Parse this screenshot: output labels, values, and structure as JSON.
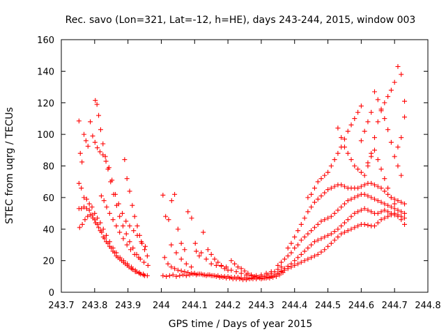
{
  "chart_data": {
    "type": "scatter",
    "title": "Rec. savo (Lon=321, Lat=-12, h=HE), days 243-244, 2015, window 003",
    "xlabel": "GPS time / Days of year 2015",
    "ylabel": "STEC from uqrg / TECUs",
    "xlim": [
      243.7,
      244.8
    ],
    "ylim": [
      0,
      160
    ],
    "xticks": [
      243.7,
      243.8,
      243.9,
      244.0,
      244.1,
      244.2,
      244.3,
      244.4,
      244.5,
      244.6,
      244.7,
      244.8
    ],
    "xtick_labels": [
      "243.7",
      "243.8",
      "243.9",
      "244",
      "244.1",
      "244.2",
      "244.3",
      "244.4",
      "244.5",
      "244.6",
      "244.7",
      "244.8"
    ],
    "yticks": [
      0,
      20,
      40,
      60,
      80,
      100,
      120,
      140,
      160
    ],
    "ytick_labels": [
      "0",
      "20",
      "40",
      "60",
      "80",
      "100",
      "120",
      "140",
      "160"
    ],
    "grid": false,
    "legend": "none",
    "marker": "plus",
    "color": "#ff0000",
    "series": [
      {
        "x": [
          243.753,
          243.757,
          243.762,
          243.768,
          243.774,
          243.78,
          243.787,
          243.794,
          243.801,
          243.808,
          243.816,
          243.825,
          243.834,
          243.843,
          243.852,
          243.862,
          243.872,
          243.883,
          243.894,
          243.905,
          243.917,
          243.928,
          243.94,
          243.952
        ],
        "y": [
          108.5,
          88.0,
          82.5,
          100.0,
          96.0,
          92.5,
          108.0,
          99.0,
          95.0,
          91.5,
          89.0,
          87.0,
          83.0,
          79.0,
          71.0,
          62.0,
          56.0,
          50.0,
          45.0,
          42.0,
          39.0,
          36.0,
          32.0,
          29.0
        ]
      },
      {
        "x": [
          243.753,
          243.76,
          243.768,
          243.776,
          243.784,
          243.792,
          243.8,
          243.808,
          243.817,
          243.826,
          243.835,
          243.845,
          243.855,
          243.865,
          243.876,
          243.887,
          243.898,
          243.91,
          243.922,
          243.934,
          243.946,
          243.958
        ],
        "y": [
          69.0,
          66.0,
          60.0,
          59.0,
          56.0,
          54.0,
          50.0,
          47.0,
          44.0,
          40.0,
          36.0,
          32.0,
          28.0,
          25.0,
          22.0,
          20.0,
          18.0,
          16.0,
          14.0,
          12.5,
          11.5,
          10.5
        ]
      },
      {
        "x": [
          243.753,
          243.76,
          243.768,
          243.776,
          243.784,
          243.792,
          243.8,
          243.808,
          243.817,
          243.826,
          243.835,
          243.845,
          243.855,
          243.865,
          243.876,
          243.887,
          243.898,
          243.91,
          243.922,
          243.934,
          243.946
        ],
        "y": [
          53.0,
          53.0,
          54.0,
          53.0,
          52.0,
          49.0,
          46.0,
          43.0,
          39.0,
          35.0,
          32.0,
          29.0,
          26.0,
          23.0,
          21.0,
          19.0,
          17.0,
          15.0,
          13.0,
          12.0,
          11.0
        ]
      },
      {
        "x": [
          243.755,
          243.763,
          243.771,
          243.779,
          243.787,
          243.795,
          243.803,
          243.812,
          243.821,
          243.83,
          243.84,
          243.85,
          243.86,
          243.87,
          243.881,
          243.892,
          243.903,
          243.914,
          243.926,
          243.938,
          243.95
        ],
        "y": [
          41.0,
          43.0,
          46.0,
          48.0,
          49.0,
          47.0,
          44.0,
          41.0,
          38.0,
          34.0,
          31.0,
          28.0,
          25.0,
          22.0,
          20.0,
          18.0,
          16.0,
          14.5,
          13.0,
          11.5,
          10.5
        ]
      },
      {
        "x": [
          243.802,
          243.807,
          243.812,
          243.818,
          243.825,
          243.832,
          243.84,
          243.848,
          243.857,
          243.866,
          243.875,
          243.885,
          243.895,
          243.905,
          243.915,
          243.926,
          243.937,
          243.948,
          243.96
        ],
        "y": [
          121.5,
          119.0,
          112.0,
          103.0,
          94.0,
          86.0,
          78.0,
          70.0,
          62.0,
          55.0,
          48.0,
          42.0,
          37.0,
          32.0,
          28.0,
          24.0,
          21.0,
          19.0,
          17.0
        ]
      },
      {
        "x": [
          243.82,
          243.828,
          243.836,
          243.845,
          243.855,
          243.865,
          243.875,
          243.886,
          243.897,
          243.908,
          243.92,
          243.932
        ],
        "y": [
          61.0,
          58.0,
          54.0,
          50.0,
          46.0,
          42.0,
          38.0,
          34.0,
          30.0,
          27.0,
          24.0,
          22.0
        ],
        "_note": null
      },
      {
        "x": [
          243.89,
          243.897,
          243.905,
          243.913,
          243.92,
          243.928,
          243.935,
          243.942,
          243.95,
          243.958
        ],
        "y": [
          84.0,
          72.0,
          64.0,
          55.0,
          48.0,
          42.0,
          36.0,
          31.0,
          27.0,
          23.0
        ]
      },
      {
        "x": [
          244.005,
          244.013,
          244.022,
          244.031,
          244.04,
          244.05,
          244.06,
          244.07,
          244.08,
          244.091,
          244.102,
          244.114,
          244.126
        ],
        "y": [
          61.5,
          48.0,
          46.0,
          58.0,
          62.0,
          40.0,
          31.0,
          27.0,
          51.0,
          47.0,
          31.0,
          23.0,
          38.0
        ]
      },
      {
        "x": [
          244.005,
          244.015,
          244.025,
          244.035,
          244.045,
          244.055,
          244.065,
          244.075,
          244.085,
          244.095,
          244.105,
          244.115,
          244.125,
          244.135,
          244.145,
          244.155,
          244.165,
          244.175,
          244.185,
          244.195,
          244.205,
          244.215,
          244.225,
          244.235,
          244.245,
          244.255,
          244.265,
          244.275,
          244.285,
          244.295,
          244.305,
          244.315,
          244.325,
          244.335,
          244.345,
          244.355,
          244.365
        ],
        "y": [
          10.5,
          10.0,
          10.5,
          11.0,
          10.0,
          10.5,
          11.0,
          10.5,
          11.0,
          11.5,
          11.0,
          11.5,
          11.0,
          10.5,
          11.0,
          10.5,
          10.0,
          9.5,
          9.5,
          9.0,
          9.0,
          8.5,
          8.5,
          8.5,
          8.0,
          8.0,
          8.5,
          8.5,
          8.5,
          9.0,
          9.0,
          9.0,
          9.0,
          9.5,
          10.0,
          11.0,
          12.5
        ]
      },
      {
        "x": [
          244.01,
          244.02,
          244.03,
          244.04,
          244.05,
          244.06,
          244.07,
          244.08,
          244.09,
          244.1,
          244.11,
          244.12,
          244.13,
          244.14,
          244.15,
          244.16,
          244.17,
          244.18,
          244.19,
          244.2,
          244.21,
          244.22,
          244.23,
          244.24,
          244.25,
          244.26,
          244.27,
          244.28,
          244.29,
          244.3,
          244.31,
          244.32,
          244.33,
          244.34,
          244.35,
          244.36
        ],
        "y": [
          22.0,
          18.0,
          16.0,
          15.0,
          14.0,
          13.5,
          13.0,
          12.5,
          12.0,
          12.0,
          11.5,
          11.5,
          11.0,
          11.0,
          10.5,
          10.5,
          10.5,
          10.0,
          10.0,
          10.0,
          9.5,
          9.5,
          9.5,
          9.0,
          9.0,
          9.0,
          9.0,
          9.5,
          9.5,
          10.0,
          10.0,
          11.0,
          12.0,
          13.0,
          14.5,
          16.0
        ]
      },
      {
        "x": [
          244.03,
          244.045,
          244.06,
          244.075,
          244.09,
          244.105,
          244.12,
          244.135,
          244.15,
          244.165,
          244.18,
          244.195,
          244.21,
          244.225,
          244.24,
          244.255,
          244.27,
          244.285,
          244.3,
          244.315,
          244.33
        ],
        "y": [
          30.0,
          25.0,
          21.0,
          18.0,
          16.0,
          26.0,
          25.0,
          21.0,
          18.0,
          17.0,
          16.5,
          16.0,
          14.0,
          13.0,
          12.0,
          11.0,
          10.5,
          10.5,
          11.0,
          12.0,
          13.0
        ]
      },
      {
        "x": [
          244.14,
          244.15,
          244.16,
          244.17,
          244.18,
          244.19,
          244.2,
          244.21,
          244.22,
          244.23,
          244.24,
          244.25,
          244.26,
          244.27,
          244.28
        ],
        "y": [
          27.0,
          24.0,
          21.0,
          19.0,
          17.0,
          15.0,
          14.0,
          20.0,
          18.0,
          16.0,
          15.0,
          13.5,
          12.0,
          11.0,
          10.0
        ]
      },
      {
        "x": [
          244.3,
          244.31,
          244.32,
          244.33,
          244.34,
          244.35,
          244.36,
          244.37,
          244.38,
          244.39,
          244.4,
          244.41,
          244.42,
          244.43,
          244.44,
          244.45,
          244.46,
          244.47,
          244.48,
          244.49,
          244.5,
          244.51,
          244.52,
          244.53,
          244.54,
          244.55,
          244.56,
          244.57,
          244.58,
          244.59,
          244.6,
          244.61,
          244.62,
          244.63,
          244.64,
          244.65,
          244.66,
          244.67,
          244.68,
          244.69,
          244.7,
          244.71,
          244.72,
          244.73
        ],
        "y": [
          8.5,
          9.0,
          9.5,
          10.0,
          11.0,
          12.0,
          13.0,
          14.0,
          15.0,
          16.0,
          17.0,
          18.0,
          19.0,
          20.0,
          21.0,
          22.0,
          23.0,
          24.0,
          25.5,
          27.0,
          29.0,
          31.0,
          33.0,
          35.0,
          37.0,
          38.0,
          39.0,
          40.0,
          41.0,
          42.0,
          43.0,
          43.0,
          42.5,
          42.0,
          42.0,
          44.0,
          46.0,
          47.0,
          48.0,
          49.0,
          50.0,
          49.0,
          48.0,
          47.0
        ]
      },
      {
        "x": [
          244.33,
          244.34,
          244.35,
          244.36,
          244.37,
          244.38,
          244.39,
          244.4,
          244.41,
          244.42,
          244.43,
          244.44,
          244.45,
          244.46,
          244.47,
          244.48,
          244.49,
          244.5,
          244.51,
          244.52,
          244.53,
          244.54,
          244.55,
          244.56,
          244.57,
          244.58,
          244.59,
          244.6,
          244.61,
          244.62,
          244.63,
          244.64,
          244.65,
          244.66,
          244.67,
          244.68,
          244.69,
          244.7,
          244.71,
          244.72,
          244.73
        ],
        "y": [
          10.0,
          11.0,
          12.0,
          13.5,
          15.0,
          16.5,
          18.0,
          20.0,
          22.0,
          24.0,
          26.0,
          28.0,
          30.0,
          32.0,
          33.0,
          34.0,
          35.0,
          36.0,
          37.0,
          38.5,
          40.0,
          42.0,
          44.0,
          46.0,
          48.0,
          50.0,
          51.0,
          52.0,
          53.0,
          52.0,
          51.0,
          50.0,
          50.0,
          51.0,
          52.0,
          51.0,
          50.0,
          49.0,
          48.0,
          46.0,
          43.0
        ]
      },
      {
        "x": [
          244.35,
          244.36,
          244.37,
          244.38,
          244.39,
          244.4,
          244.41,
          244.42,
          244.43,
          244.44,
          244.45,
          244.46,
          244.47,
          244.48,
          244.49,
          244.5,
          244.51,
          244.52,
          244.53,
          244.54,
          244.55,
          244.56,
          244.57,
          244.58,
          244.59,
          244.6,
          244.61,
          244.62,
          244.63,
          244.64,
          244.65,
          244.66,
          244.67,
          244.68,
          244.69,
          244.7,
          244.71,
          244.72,
          244.73
        ],
        "y": [
          17.0,
          19.0,
          21.0,
          23.0,
          25.0,
          28.0,
          30.0,
          33.0,
          35.0,
          37.0,
          39.0,
          41.0,
          43.0,
          45.0,
          46.0,
          47.0,
          48.0,
          50.0,
          52.0,
          54.0,
          56.0,
          58.0,
          59.0,
          60.0,
          61.0,
          62.0,
          62.0,
          61.0,
          60.0,
          59.0,
          58.0,
          57.0,
          56.0,
          55.0,
          54.0,
          53.0,
          52.0,
          51.0,
          50.0
        ]
      },
      {
        "x": [
          244.38,
          244.39,
          244.4,
          244.41,
          244.42,
          244.43,
          244.44,
          244.45,
          244.46,
          244.47,
          244.48,
          244.49,
          244.5,
          244.51,
          244.52,
          244.53,
          244.54,
          244.55,
          244.56,
          244.57,
          244.58,
          244.59,
          244.6,
          244.61,
          244.62,
          244.63,
          244.64,
          244.65,
          244.66,
          244.67,
          244.68,
          244.69,
          244.7,
          244.71,
          244.72,
          244.73
        ],
        "y": [
          28.0,
          31.0,
          35.0,
          39.0,
          43.0,
          47.0,
          51.0,
          54.0,
          57.0,
          59.0,
          61.0,
          63.0,
          65.0,
          66.0,
          67.0,
          68.0,
          68.0,
          67.0,
          66.0,
          66.0,
          66.0,
          66.0,
          67.0,
          68.0,
          69.0,
          69.0,
          68.0,
          67.0,
          66.0,
          64.0,
          62.0,
          60.0,
          59.0,
          58.0,
          57.0,
          56.0
        ]
      },
      {
        "x": [
          244.44,
          244.45,
          244.46,
          244.47,
          244.48,
          244.49,
          244.5,
          244.51,
          244.52,
          244.53,
          244.54,
          244.55,
          244.56,
          244.57,
          244.58,
          244.59,
          244.6
        ],
        "y": [
          60.0,
          62.0,
          66.0,
          70.0,
          72.0,
          74.0,
          76.0,
          80.0,
          84.0,
          88.0,
          92.0,
          97.0,
          102.0,
          106.0,
          110.0,
          114.0,
          118.0
        ]
      },
      {
        "x": [
          244.53,
          244.54,
          244.55,
          244.56,
          244.57,
          244.58,
          244.59,
          244.6,
          244.61,
          244.62,
          244.63,
          244.64,
          244.65,
          244.66,
          244.67,
          244.68,
          244.69,
          244.7,
          244.71,
          244.72,
          244.73
        ],
        "y": [
          104.0,
          98.0,
          92.0,
          88.0,
          84.0,
          80.0,
          78.0,
          76.0,
          74.0,
          80.0,
          88.0,
          98.0,
          108.0,
          115.0,
          120.0,
          124.0,
          128.0,
          133.0,
          143.0,
          138.0,
          121.0
        ]
      },
      {
        "x": [
          244.6,
          244.61,
          244.62,
          244.63,
          244.64,
          244.65,
          244.66,
          244.67,
          244.68,
          244.69,
          244.7,
          244.71,
          244.72,
          244.73
        ],
        "y": [
          96.0,
          102.0,
          108.0,
          114.0,
          127.0,
          122.0,
          116.0,
          110.0,
          103.0,
          95.0,
          86.0,
          92.0,
          98.0,
          111.0
        ]
      },
      {
        "x": [
          244.62,
          244.63,
          244.64,
          244.65,
          244.66,
          244.67,
          244.68,
          244.69,
          244.7,
          244.71,
          244.72
        ],
        "y": [
          82.0,
          86.0,
          90.0,
          84.0,
          78.0,
          72.0,
          66.0,
          60.0,
          56.0,
          80.0,
          74.0
        ]
      }
    ]
  }
}
